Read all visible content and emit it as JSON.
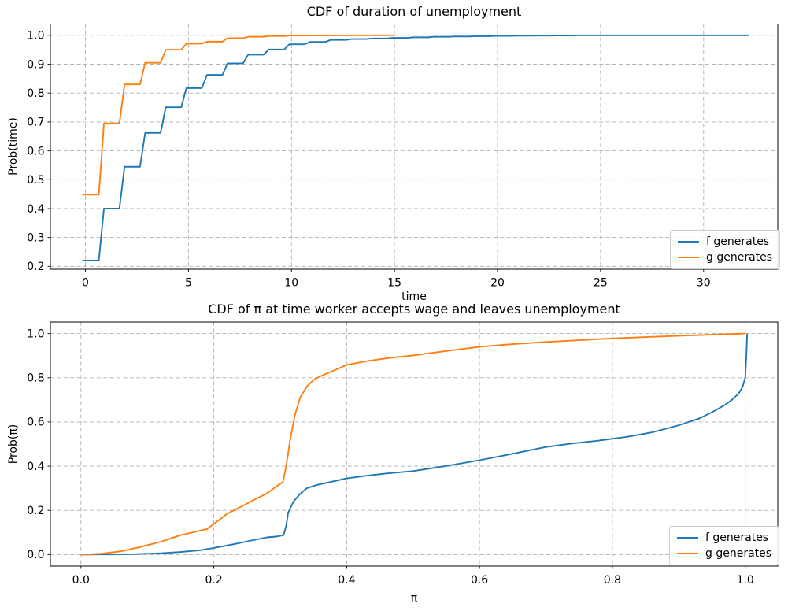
{
  "figure": {
    "kind": "matplotlib-figure",
    "background": "#ffffff"
  },
  "chart_data": [
    {
      "type": "line",
      "subtype": "step-cdf",
      "title": "CDF of duration of unemployment",
      "xlabel": "time",
      "ylabel": "Prob(time)",
      "xlim": [
        -1.7,
        33.6
      ],
      "ylim": [
        0.19,
        1.039
      ],
      "grid": true,
      "grid_color": "#b0b0b0",
      "legend_position": "lower right",
      "xticks": {
        "values": [
          0,
          5,
          10,
          15,
          20,
          25,
          30
        ],
        "labels": [
          "0",
          "5",
          "10",
          "15",
          "20",
          "25",
          "30"
        ]
      },
      "yticks": {
        "values": [
          0.2,
          0.3,
          0.4,
          0.5,
          0.6,
          0.7,
          0.8,
          0.9,
          1.0
        ],
        "labels": [
          "0.2",
          "0.3",
          "0.4",
          "0.5",
          "0.6",
          "0.7",
          "0.8",
          "0.9",
          "1.0"
        ]
      },
      "series": [
        {
          "name": "f generates",
          "color": "#1f77b4",
          "start_t": -0.15,
          "end_t": 32.2,
          "step_values_at_t": [
            0.22,
            0.4,
            0.545,
            0.662,
            0.751,
            0.817,
            0.863,
            0.903,
            0.933,
            0.951,
            0.969,
            0.977,
            0.984,
            0.987,
            0.989,
            0.991,
            0.993,
            0.995,
            0.996,
            0.997,
            0.998,
            0.9985,
            0.999,
            0.9995,
            1.0
          ]
        },
        {
          "name": "g generates",
          "color": "#ff7f0e",
          "start_t": -0.15,
          "end_t": 15.0,
          "step_values_at_t": [
            0.448,
            0.695,
            0.83,
            0.905,
            0.95,
            0.971,
            0.978,
            0.99,
            0.995,
            0.9975,
            0.999,
            0.9993,
            0.9997,
            1.0
          ]
        }
      ]
    },
    {
      "type": "line",
      "subtype": "smooth-cdf",
      "title": "CDF of π at time worker accepts wage and leaves unemployment",
      "xlabel": "π",
      "ylabel": "Prob(π)",
      "xlim": [
        -0.046,
        1.049
      ],
      "ylim": [
        -0.052,
        1.052
      ],
      "grid": true,
      "grid_color": "#b0b0b0",
      "legend_position": "lower right",
      "xticks": {
        "values": [
          0.0,
          0.2,
          0.4,
          0.6,
          0.8,
          1.0
        ],
        "labels": [
          "0.0",
          "0.2",
          "0.4",
          "0.6",
          "0.8",
          "1.0"
        ]
      },
      "yticks": {
        "values": [
          0.0,
          0.2,
          0.4,
          0.6,
          0.8,
          1.0
        ],
        "labels": [
          "0.0",
          "0.2",
          "0.4",
          "0.6",
          "0.8",
          "1.0"
        ]
      },
      "series": [
        {
          "name": "f generates",
          "color": "#1f77b4",
          "points": [
            [
              0.0,
              0.0
            ],
            [
              0.04,
              0.001
            ],
            [
              0.08,
              0.002
            ],
            [
              0.12,
              0.006
            ],
            [
              0.15,
              0.012
            ],
            [
              0.18,
              0.02
            ],
            [
              0.2,
              0.03
            ],
            [
              0.23,
              0.047
            ],
            [
              0.26,
              0.066
            ],
            [
              0.28,
              0.078
            ],
            [
              0.295,
              0.082
            ],
            [
              0.305,
              0.088
            ],
            [
              0.309,
              0.13
            ],
            [
              0.312,
              0.19
            ],
            [
              0.32,
              0.24
            ],
            [
              0.33,
              0.275
            ],
            [
              0.34,
              0.3
            ],
            [
              0.355,
              0.315
            ],
            [
              0.37,
              0.325
            ],
            [
              0.4,
              0.345
            ],
            [
              0.43,
              0.357
            ],
            [
              0.46,
              0.367
            ],
            [
              0.5,
              0.378
            ],
            [
              0.55,
              0.401
            ],
            [
              0.6,
              0.427
            ],
            [
              0.65,
              0.456
            ],
            [
              0.7,
              0.487
            ],
            [
              0.74,
              0.503
            ],
            [
              0.78,
              0.516
            ],
            [
              0.82,
              0.532
            ],
            [
              0.86,
              0.553
            ],
            [
              0.9,
              0.585
            ],
            [
              0.93,
              0.615
            ],
            [
              0.95,
              0.644
            ],
            [
              0.97,
              0.678
            ],
            [
              0.98,
              0.7
            ],
            [
              0.99,
              0.728
            ],
            [
              0.996,
              0.758
            ],
            [
              1.0,
              0.8
            ],
            [
              1.002,
              0.92
            ],
            [
              1.003,
              1.0
            ]
          ]
        },
        {
          "name": "g generates",
          "color": "#ff7f0e",
          "points": [
            [
              0.0,
              0.0
            ],
            [
              0.03,
              0.004
            ],
            [
              0.06,
              0.015
            ],
            [
              0.09,
              0.035
            ],
            [
              0.12,
              0.058
            ],
            [
              0.15,
              0.088
            ],
            [
              0.17,
              0.102
            ],
            [
              0.19,
              0.116
            ],
            [
              0.205,
              0.15
            ],
            [
              0.22,
              0.185
            ],
            [
              0.24,
              0.215
            ],
            [
              0.26,
              0.247
            ],
            [
              0.28,
              0.277
            ],
            [
              0.295,
              0.31
            ],
            [
              0.304,
              0.328
            ],
            [
              0.309,
              0.4
            ],
            [
              0.315,
              0.52
            ],
            [
              0.322,
              0.63
            ],
            [
              0.33,
              0.71
            ],
            [
              0.34,
              0.76
            ],
            [
              0.35,
              0.79
            ],
            [
              0.36,
              0.806
            ],
            [
              0.38,
              0.832
            ],
            [
              0.4,
              0.858
            ],
            [
              0.43,
              0.875
            ],
            [
              0.46,
              0.888
            ],
            [
              0.5,
              0.901
            ],
            [
              0.55,
              0.921
            ],
            [
              0.6,
              0.94
            ],
            [
              0.65,
              0.952
            ],
            [
              0.7,
              0.962
            ],
            [
              0.75,
              0.97
            ],
            [
              0.8,
              0.978
            ],
            [
              0.85,
              0.984
            ],
            [
              0.9,
              0.99
            ],
            [
              0.95,
              0.995
            ],
            [
              1.0,
              1.0
            ]
          ]
        }
      ]
    }
  ]
}
